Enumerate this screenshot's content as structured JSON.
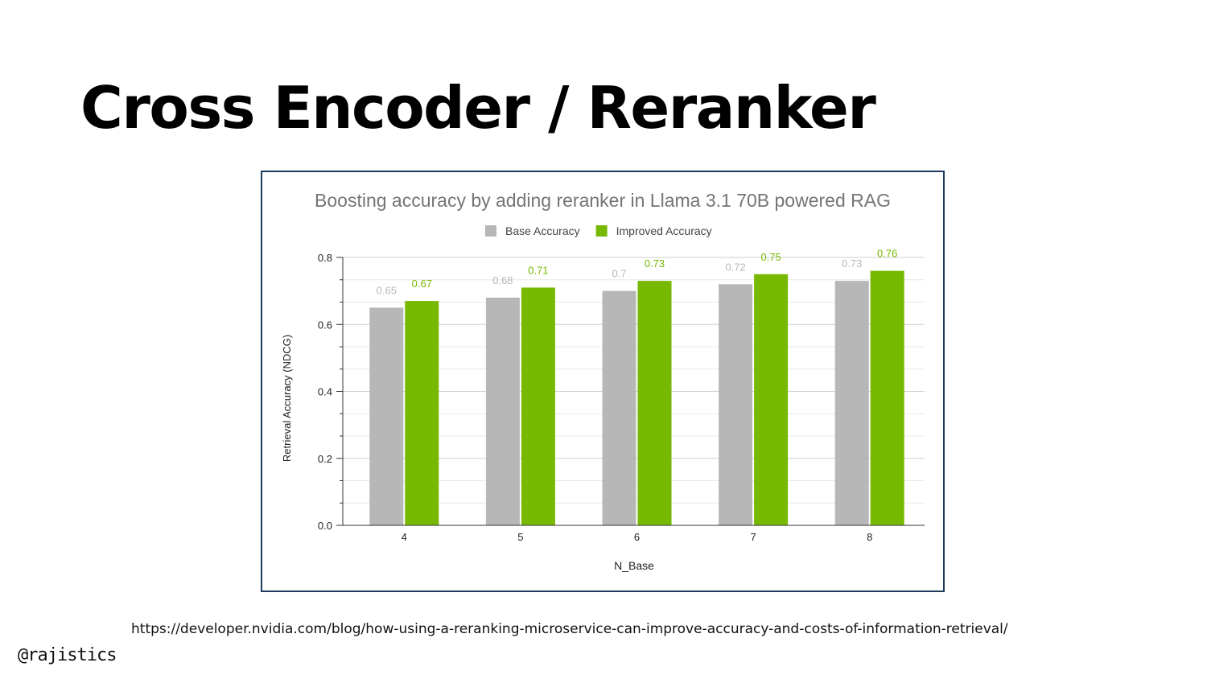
{
  "slide": {
    "title": "Cross Encoder / Reranker",
    "source_url": "https://developer.nvidia.com/blog/how-using-a-reranking-microservice-can-improve-accuracy-and-costs-of-information-retrieval/",
    "handle": "@rajistics"
  },
  "chart_data": {
    "type": "bar",
    "title": "Boosting accuracy by adding reranker in Llama 3.1 70B powered RAG",
    "xlabel": "N_Base",
    "ylabel": "Retrieval Accuracy (NDCG)",
    "categories": [
      "4",
      "5",
      "6",
      "7",
      "8"
    ],
    "series": [
      {
        "name": "Base Accuracy",
        "values": [
          0.65,
          0.68,
          0.7,
          0.72,
          0.73
        ],
        "color": "#b7b7b7",
        "label_color": "#b7b7b7"
      },
      {
        "name": "Improved Accuracy",
        "values": [
          0.67,
          0.71,
          0.73,
          0.75,
          0.76
        ],
        "color": "#76b900",
        "label_color": "#76b900"
      }
    ],
    "ylim": [
      0,
      0.8
    ],
    "yticks": [
      "0.0",
      "0.2",
      "0.4",
      "0.6",
      "0.8"
    ],
    "grid": true,
    "legend": "top-center"
  }
}
